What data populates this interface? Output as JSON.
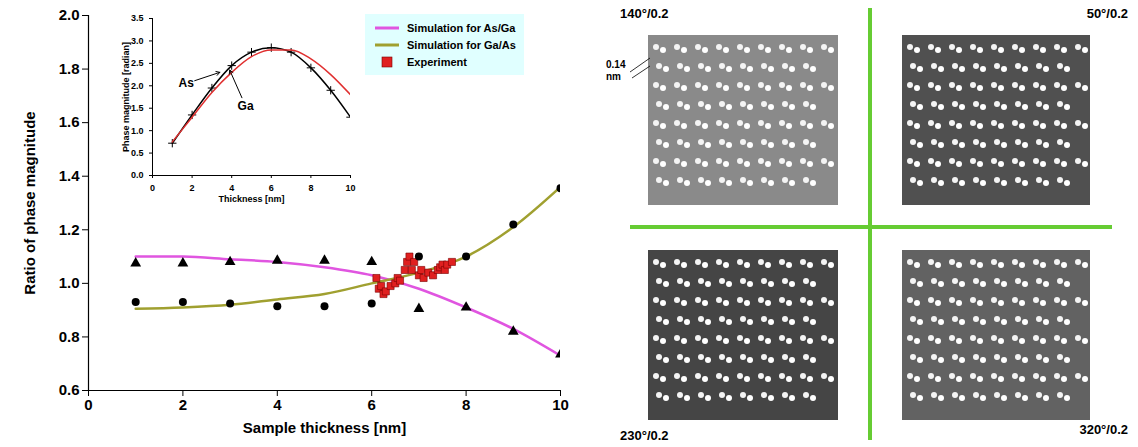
{
  "chart_data": [
    {
      "type": "line",
      "xlabel": "Sample thickness [nm]",
      "ylabel": "Ratio of phase magnitude",
      "xlim": [
        0,
        10
      ],
      "ylim": [
        0.6,
        2.0
      ],
      "xticks": [
        0,
        2,
        4,
        6,
        8,
        10
      ],
      "yticks": [
        0.6,
        0.8,
        {
          "value": 1.0,
          "label": "1.0"
        },
        1.2,
        1.4,
        1.6,
        1.8,
        {
          "value": 2.0,
          "label": "2.0"
        }
      ],
      "legend": "upper right",
      "series": [
        {
          "name": "Simulation for As/Ga",
          "type": "line",
          "color": "#e055e0",
          "x": [
            1,
            2,
            3,
            4,
            5,
            6,
            7,
            8,
            9,
            10
          ],
          "values": [
            1.1,
            1.1,
            1.09,
            1.08,
            1.06,
            1.03,
            0.98,
            0.91,
            0.83,
            0.73
          ]
        },
        {
          "name": "Simulation for Ga/As",
          "type": "line",
          "color": "#a0a030",
          "x": [
            1,
            2,
            3,
            4,
            5,
            6,
            7,
            8,
            9,
            10
          ],
          "values": [
            0.905,
            0.91,
            0.92,
            0.94,
            0.96,
            1.0,
            1.04,
            1.1,
            1.21,
            1.36
          ]
        },
        {
          "name": "Experiment",
          "type": "scatter",
          "marker": "square",
          "color": "#e02020",
          "x": [
            6.1,
            6.15,
            6.2,
            6.25,
            6.3,
            6.4,
            6.5,
            6.55,
            6.6,
            6.7,
            6.75,
            6.8,
            6.85,
            6.9,
            7.0,
            7.05,
            7.1,
            7.2,
            7.3,
            7.4,
            7.45,
            7.5,
            7.55,
            7.6,
            7.7
          ],
          "values": [
            1.02,
            0.98,
            0.99,
            0.96,
            0.97,
            0.99,
            1.0,
            1.02,
            1.01,
            1.05,
            1.08,
            1.1,
            1.05,
            1.08,
            1.03,
            1.05,
            1.02,
            1.04,
            1.03,
            1.05,
            1.06,
            1.07,
            1.05,
            1.07,
            1.08
          ]
        },
        {
          "type": "scatter",
          "marker": "triangle",
          "color": "#000000",
          "x": [
            1,
            2,
            3,
            4,
            5,
            6,
            7,
            8,
            9,
            10
          ],
          "values": [
            1.075,
            1.075,
            1.08,
            1.085,
            1.085,
            1.08,
            0.905,
            0.91,
            0.82,
            0.735
          ]
        },
        {
          "type": "scatter",
          "marker": "circle",
          "color": "#000000",
          "x": [
            1,
            2,
            3,
            4,
            5,
            6,
            7,
            8,
            9,
            10
          ],
          "values": [
            0.93,
            0.93,
            0.925,
            0.915,
            0.915,
            0.925,
            1.1,
            1.1,
            1.22,
            1.355
          ]
        }
      ]
    },
    {
      "type": "line",
      "xlabel": "Thickness [nm]",
      "ylabel": "Phase magnitude [radian]",
      "xlim": [
        0,
        10
      ],
      "ylim": [
        0.0,
        3.5
      ],
      "xticks": [
        0,
        2,
        4,
        6,
        8,
        10
      ],
      "yticks": [
        {
          "value": 0.0,
          "label": "0.0"
        },
        0.5,
        {
          "value": 1.0,
          "label": "1.0"
        },
        1.5,
        {
          "value": 2.0,
          "label": "2.0"
        },
        2.5,
        {
          "value": 3.0,
          "label": "3.0"
        },
        3.5
      ],
      "series": [
        {
          "name": "As",
          "type": "line",
          "color": "#000000",
          "marker": "plus",
          "x": [
            1,
            2,
            3,
            4,
            5,
            6,
            7,
            8,
            9,
            10
          ],
          "values": [
            0.72,
            1.35,
            1.95,
            2.45,
            2.75,
            2.85,
            2.75,
            2.4,
            1.9,
            1.3
          ]
        },
        {
          "name": "Ga",
          "type": "line",
          "color": "#e03030",
          "x": [
            1,
            2,
            3,
            4,
            5,
            6,
            7,
            8,
            9,
            10
          ],
          "values": [
            0.75,
            1.3,
            1.85,
            2.3,
            2.65,
            2.8,
            2.8,
            2.6,
            2.25,
            1.8
          ]
        }
      ],
      "annotations": [
        {
          "text": "As",
          "x": 1.7,
          "y": 2.05,
          "arrow_to": [
            3.4,
            2.3
          ]
        },
        {
          "text": "Ga",
          "x": 4.7,
          "y": 1.55,
          "arrow_to": [
            3.9,
            2.35
          ]
        }
      ]
    }
  ],
  "panels": {
    "images": [
      {
        "label": "140°/0.2"
      },
      {
        "label": "50°/0.2"
      },
      {
        "label": "230°/0.2"
      },
      {
        "label": "320°/0.2"
      }
    ],
    "scale_label": "0.14 nm"
  }
}
